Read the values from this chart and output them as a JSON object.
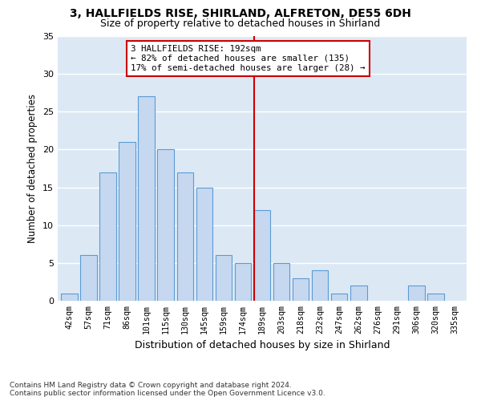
{
  "title": "3, HALLFIELDS RISE, SHIRLAND, ALFRETON, DE55 6DH",
  "subtitle": "Size of property relative to detached houses in Shirland",
  "xlabel": "Distribution of detached houses by size in Shirland",
  "ylabel": "Number of detached properties",
  "footer": "Contains HM Land Registry data © Crown copyright and database right 2024.\nContains public sector information licensed under the Open Government Licence v3.0.",
  "bin_labels": [
    "42sqm",
    "57sqm",
    "71sqm",
    "86sqm",
    "101sqm",
    "115sqm",
    "130sqm",
    "145sqm",
    "159sqm",
    "174sqm",
    "189sqm",
    "203sqm",
    "218sqm",
    "232sqm",
    "247sqm",
    "262sqm",
    "276sqm",
    "291sqm",
    "306sqm",
    "320sqm",
    "335sqm"
  ],
  "bar_heights": [
    1,
    6,
    17,
    21,
    27,
    20,
    17,
    15,
    6,
    5,
    12,
    5,
    3,
    4,
    1,
    2,
    0,
    0,
    2,
    1,
    0
  ],
  "bar_color": "#c5d8f0",
  "bar_edge_color": "#5b9bd5",
  "vline_x_index": 10.0,
  "vline_color": "#cc0000",
  "annotation_text": "3 HALLFIELDS RISE: 192sqm\n← 82% of detached houses are smaller (135)\n17% of semi-detached houses are larger (28) →",
  "annotation_box_color": "#cc0000",
  "ylim": [
    0,
    35
  ],
  "yticks": [
    0,
    5,
    10,
    15,
    20,
    25,
    30,
    35
  ],
  "grid_color": "#ffffff",
  "bg_color": "#dce9f5",
  "title_fontsize": 10,
  "subtitle_fontsize": 9,
  "footer_fontsize": 6.5
}
